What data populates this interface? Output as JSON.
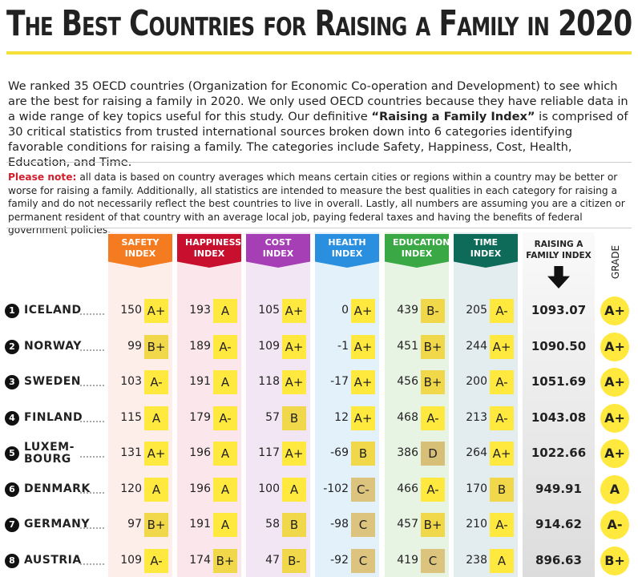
{
  "header": {
    "title": "The Best Countries for Raising a Family in 2020"
  },
  "intro": {
    "text_before": "We ranked 35 OECD countries (Organization for Economic Co-operation and Development) to see which are the best for raising a family in 2020. We only used OECD countries because they have reliable data in a wide range of key topics useful for this study. Our definitive ",
    "bold": "“Raising a Family Index”",
    "text_after": " is comprised of 30 critical statistics from trusted international sources broken down into 6 categories identifying favorable conditions for raising a family. The categories include Safety, Happiness, Cost, Health, Education, and Time."
  },
  "note": {
    "label": "Please note:",
    "text": "all data is based on country averages which means certain cities or regions within a country may be better or worse for raising a family. Additionally, all statistics are intended to measure the best qualities in each category for raising a family and do not necessarily reflect the best countries to live in overall. Lastly, all numbers are assuming you are a citizen or permanent resident of that country with an average local job, paying federal taxes and having the benefits of federal government policies."
  },
  "columns": [
    {
      "name": "SAFETY INDEX",
      "color": "#f47b20",
      "tint": "#fdeeea"
    },
    {
      "name": "HAPPINESS INDEX",
      "color": "#c8102e",
      "tint": "#fbe6ec"
    },
    {
      "name": "COST INDEX",
      "color": "#a63fb5",
      "tint": "#f3e6f4"
    },
    {
      "name": "HEALTH INDEX",
      "color": "#2b8fe0",
      "tint": "#e3f1fb"
    },
    {
      "name": "EDUCATION INDEX",
      "color": "#3aa845",
      "tint": "#e7f4e4"
    },
    {
      "name": "TIME INDEX",
      "color": "#0e6b5a",
      "tint": "#e3ecee"
    }
  ],
  "index_header": "RAISING A FAMILY INDEX",
  "grade_header": "GRADE",
  "rows": [
    {
      "rank": 1,
      "country": "ICELAND",
      "scores": [
        {
          "value": 150,
          "grade": "A+"
        },
        {
          "value": 193,
          "grade": "A"
        },
        {
          "value": 105,
          "grade": "A+"
        },
        {
          "value": 0,
          "grade": "A+"
        },
        {
          "value": 439,
          "grade": "B-"
        },
        {
          "value": 205,
          "grade": "A-"
        }
      ],
      "index": "1093.07",
      "grade": "A+"
    },
    {
      "rank": 2,
      "country": "NORWAY",
      "scores": [
        {
          "value": 99,
          "grade": "B+"
        },
        {
          "value": 189,
          "grade": "A-"
        },
        {
          "value": 109,
          "grade": "A+"
        },
        {
          "value": -1,
          "grade": "A+"
        },
        {
          "value": 451,
          "grade": "B+"
        },
        {
          "value": 244,
          "grade": "A+"
        }
      ],
      "index": "1090.50",
      "grade": "A+"
    },
    {
      "rank": 3,
      "country": "SWEDEN",
      "scores": [
        {
          "value": 103,
          "grade": "A-"
        },
        {
          "value": 191,
          "grade": "A"
        },
        {
          "value": 118,
          "grade": "A+"
        },
        {
          "value": -17,
          "grade": "A+"
        },
        {
          "value": 456,
          "grade": "B+"
        },
        {
          "value": 200,
          "grade": "A-"
        }
      ],
      "index": "1051.69",
      "grade": "A+"
    },
    {
      "rank": 4,
      "country": "FINLAND",
      "scores": [
        {
          "value": 115,
          "grade": "A"
        },
        {
          "value": 179,
          "grade": "A-"
        },
        {
          "value": 57,
          "grade": "B"
        },
        {
          "value": 12,
          "grade": "A+"
        },
        {
          "value": 468,
          "grade": "A-"
        },
        {
          "value": 213,
          "grade": "A-"
        }
      ],
      "index": "1043.08",
      "grade": "A+"
    },
    {
      "rank": 5,
      "country": "LUXEM-BOURG",
      "scores": [
        {
          "value": 131,
          "grade": "A+"
        },
        {
          "value": 196,
          "grade": "A"
        },
        {
          "value": 117,
          "grade": "A+"
        },
        {
          "value": -69,
          "grade": "B"
        },
        {
          "value": 386,
          "grade": "D"
        },
        {
          "value": 264,
          "grade": "A+"
        }
      ],
      "index": "1022.66",
      "grade": "A+"
    },
    {
      "rank": 6,
      "country": "DENMARK",
      "scores": [
        {
          "value": 120,
          "grade": "A"
        },
        {
          "value": 196,
          "grade": "A"
        },
        {
          "value": 100,
          "grade": "A"
        },
        {
          "value": -102,
          "grade": "C-"
        },
        {
          "value": 466,
          "grade": "A-"
        },
        {
          "value": 170,
          "grade": "B"
        }
      ],
      "index": "949.91",
      "grade": "A"
    },
    {
      "rank": 7,
      "country": "GERMANY",
      "scores": [
        {
          "value": 97,
          "grade": "B+"
        },
        {
          "value": 191,
          "grade": "A"
        },
        {
          "value": 58,
          "grade": "B"
        },
        {
          "value": -98,
          "grade": "C"
        },
        {
          "value": 457,
          "grade": "B+"
        },
        {
          "value": 210,
          "grade": "A-"
        }
      ],
      "index": "914.62",
      "grade": "A-"
    },
    {
      "rank": 8,
      "country": "AUSTRIA",
      "scores": [
        {
          "value": 109,
          "grade": "A-"
        },
        {
          "value": 174,
          "grade": "B+"
        },
        {
          "value": 47,
          "grade": "B-"
        },
        {
          "value": -92,
          "grade": "C"
        },
        {
          "value": 419,
          "grade": "C"
        },
        {
          "value": 238,
          "grade": "A"
        }
      ],
      "index": "896.63",
      "grade": "B+"
    }
  ]
}
